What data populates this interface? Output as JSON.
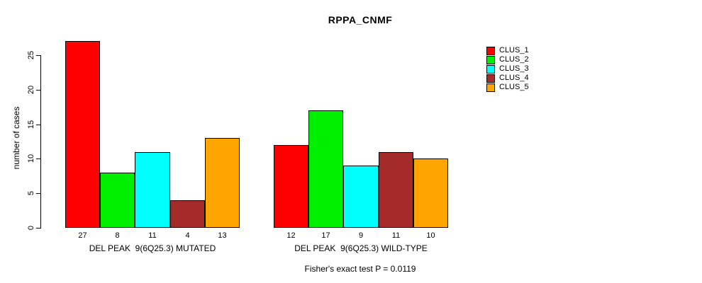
{
  "chart_data": {
    "type": "bar",
    "title": "RPPA_CNMF",
    "ylabel": "number of cases",
    "xlabel": "",
    "ylim": [
      0,
      27
    ],
    "yticks": [
      0,
      5,
      10,
      15,
      20,
      25
    ],
    "grid": false,
    "legend_position": "top-right",
    "categories": [
      "DEL PEAK  9(6Q25.3) MUTATED",
      "DEL PEAK  9(6Q25.3) WILD-TYPE"
    ],
    "series": [
      {
        "name": "CLUS_1",
        "color": "#FF0000",
        "values": [
          27,
          12
        ]
      },
      {
        "name": "CLUS_2",
        "color": "#00EE00",
        "values": [
          8,
          17
        ]
      },
      {
        "name": "CLUS_3",
        "color": "#00FFFF",
        "values": [
          11,
          9
        ]
      },
      {
        "name": "CLUS_4",
        "color": "#A52A2A",
        "values": [
          4,
          11
        ]
      },
      {
        "name": "CLUS_5",
        "color": "#FFA500",
        "values": [
          13,
          10
        ]
      }
    ],
    "bar_value_labels": [
      [
        27,
        8,
        11,
        4,
        13
      ],
      [
        12,
        17,
        9,
        11,
        10
      ]
    ],
    "annotation": "Fisher's exact test P = 0.0119"
  }
}
